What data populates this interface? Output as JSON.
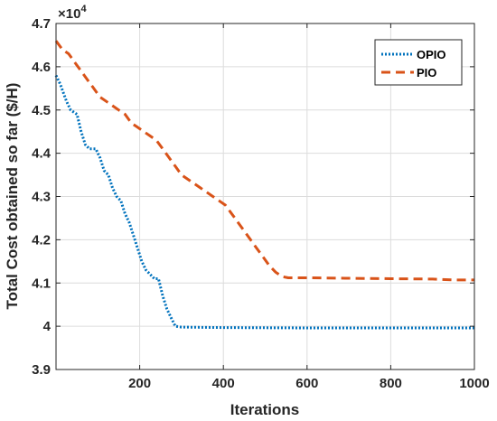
{
  "chart_data": {
    "type": "line",
    "title": "",
    "xlabel": "Iterations",
    "ylabel": "Total Cost obtained so far ($/H)",
    "y_multiplier_base": "×10",
    "y_multiplier_exp": "4",
    "xlim": [
      0,
      1000
    ],
    "ylim": [
      3.9,
      4.7
    ],
    "x_ticks": [
      200,
      400,
      600,
      800,
      1000
    ],
    "x_tick_labels": [
      "200",
      "400",
      "600",
      "800",
      "1000"
    ],
    "y_ticks": [
      3.9,
      4.0,
      4.1,
      4.2,
      4.3,
      4.4,
      4.5,
      4.6,
      4.7
    ],
    "y_tick_labels": [
      "3.9",
      "4",
      "4.1",
      "4.2",
      "4.3",
      "4.4",
      "4.5",
      "4.6",
      "4.7"
    ],
    "grid": true,
    "legend_position": "top-right",
    "series": [
      {
        "name": "OPIO",
        "color": "#0072BD",
        "dash": "dotted",
        "x": [
          0,
          10,
          25,
          35,
          50,
          60,
          70,
          80,
          95,
          105,
          115,
          125,
          135,
          145,
          155,
          165,
          175,
          185,
          195,
          205,
          215,
          225,
          235,
          245,
          255,
          265,
          275,
          285,
          300,
          400,
          600,
          800,
          1000
        ],
        "y": [
          4.58,
          4.56,
          4.52,
          4.5,
          4.49,
          4.45,
          4.42,
          4.41,
          4.41,
          4.39,
          4.36,
          4.35,
          4.32,
          4.3,
          4.29,
          4.26,
          4.24,
          4.21,
          4.18,
          4.15,
          4.13,
          4.12,
          4.11,
          4.11,
          4.07,
          4.04,
          4.02,
          4.0,
          3.998,
          3.997,
          3.996,
          3.996,
          3.996
        ]
      },
      {
        "name": "PIO",
        "color": "#D95319",
        "dash": "dashed",
        "x": [
          0,
          15,
          30,
          45,
          60,
          75,
          90,
          105,
          120,
          135,
          150,
          165,
          180,
          195,
          210,
          225,
          240,
          255,
          270,
          285,
          300,
          315,
          330,
          345,
          360,
          375,
          390,
          405,
          420,
          435,
          450,
          465,
          480,
          495,
          510,
          525,
          540,
          555,
          600,
          700,
          800,
          900,
          950,
          1000
        ],
        "y": [
          4.66,
          4.64,
          4.63,
          4.61,
          4.59,
          4.57,
          4.55,
          4.53,
          4.52,
          4.51,
          4.5,
          4.49,
          4.47,
          4.46,
          4.45,
          4.44,
          4.43,
          4.41,
          4.39,
          4.37,
          4.35,
          4.34,
          4.33,
          4.32,
          4.31,
          4.3,
          4.29,
          4.28,
          4.26,
          4.24,
          4.22,
          4.2,
          4.18,
          4.16,
          4.14,
          4.125,
          4.115,
          4.112,
          4.112,
          4.111,
          4.11,
          4.109,
          4.107,
          4.107
        ]
      }
    ]
  }
}
